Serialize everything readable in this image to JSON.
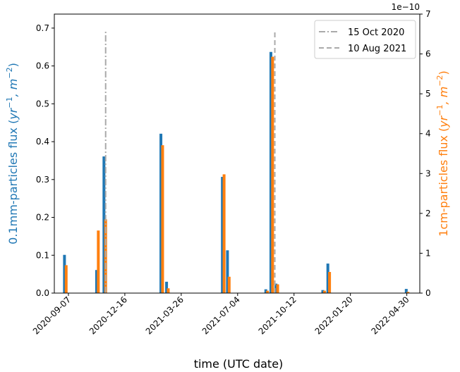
{
  "chart_data": {
    "type": "bar",
    "title": "",
    "xlabel": "time (UTC date)",
    "ylabel_left_parts": [
      "0.1mm-particles flux (",
      "yr",
      "−1",
      ", m",
      "−2",
      ")"
    ],
    "ylabel_right_parts": [
      "1cm-particles flux (",
      "yr",
      "−1",
      ", m",
      "−2",
      ")"
    ],
    "right_axis_multiplier": "1e−10",
    "x_range": [
      "2020-08-13",
      "2022-05-23"
    ],
    "x_ticks": [
      "2020-09-07",
      "2020-12-16",
      "2021-03-26",
      "2021-07-04",
      "2021-10-12",
      "2022-01-20",
      "2022-04-30"
    ],
    "ylim_left": [
      0,
      0.737
    ],
    "ylim_right": [
      0,
      7
    ],
    "yticks_left": [
      0.0,
      0.1,
      0.2,
      0.3,
      0.4,
      0.5,
      0.6,
      0.7
    ],
    "yticks_left_labels": [
      "0.0",
      "0.1",
      "0.2",
      "0.3",
      "0.4",
      "0.5",
      "0.6",
      "0.7"
    ],
    "yticks_right": [
      0,
      1,
      2,
      3,
      4,
      5,
      6,
      7
    ],
    "yticks_right_labels": [
      "0",
      "1",
      "2",
      "3",
      "4",
      "5",
      "6",
      "7"
    ],
    "colors": {
      "left": "#1f77b4",
      "right": "#ff7f0e",
      "vline": "#aaaaaa"
    },
    "grid": false,
    "legend_position": "top-right",
    "series": [
      {
        "axis": "left",
        "color": "#1f77b4",
        "points": [
          [
            "2020-08-31",
            0.101
          ],
          [
            "2020-10-27",
            0.061
          ],
          [
            "2020-11-09",
            0.361
          ],
          [
            "2021-02-18",
            0.421
          ],
          [
            "2021-02-28",
            0.03
          ],
          [
            "2021-06-07",
            0.307
          ],
          [
            "2021-06-16",
            0.113
          ],
          [
            "2021-08-23",
            0.01
          ],
          [
            "2021-09-01",
            0.637
          ],
          [
            "2021-09-10",
            0.025
          ],
          [
            "2021-12-02",
            0.008
          ],
          [
            "2021-12-11",
            0.078
          ],
          [
            "2022-04-29",
            0.011
          ]
        ]
      },
      {
        "axis": "right",
        "color": "#ff7f0e",
        "points": [
          [
            "2020-09-03",
            0.7
          ],
          [
            "2020-10-30",
            1.57
          ],
          [
            "2020-11-12",
            1.85
          ],
          [
            "2021-02-21",
            3.71
          ],
          [
            "2021-03-03",
            0.12
          ],
          [
            "2021-06-10",
            2.98
          ],
          [
            "2021-06-19",
            0.41
          ],
          [
            "2021-08-26",
            0.06
          ],
          [
            "2021-09-04",
            5.93
          ],
          [
            "2021-09-13",
            0.22
          ],
          [
            "2021-12-05",
            0.06
          ],
          [
            "2021-12-14",
            0.53
          ],
          [
            "2022-05-02",
            0.03
          ]
        ]
      }
    ],
    "vlines": [
      {
        "date": "2020-11-12",
        "label": "15 Oct 2020",
        "style": "dashdot",
        "y_left": 0.695
      },
      {
        "date": "2021-09-08",
        "label": "10 Aug 2021",
        "style": "dashed",
        "y_left": 0.695
      }
    ]
  }
}
